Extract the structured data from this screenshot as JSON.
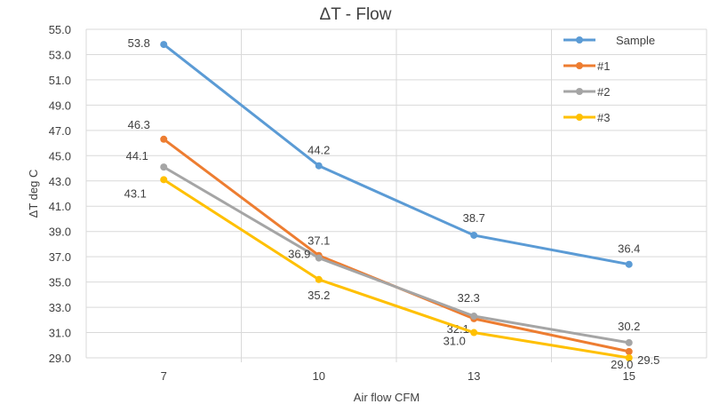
{
  "chart_data": {
    "type": "line",
    "title": "ΔT - Flow",
    "xlabel": "Air flow  CFM",
    "ylabel": "ΔT  deg C",
    "categories": [
      "7",
      "10",
      "13",
      "15"
    ],
    "ylim": [
      29.0,
      55.0
    ],
    "yticks": [
      "29.0",
      "31.0",
      "33.0",
      "35.0",
      "37.0",
      "39.0",
      "41.0",
      "43.0",
      "45.0",
      "47.0",
      "49.0",
      "51.0",
      "53.0",
      "55.0"
    ],
    "grid": true,
    "legend": "top-right",
    "series": [
      {
        "name": "Sample",
        "color": "#5B9BD5",
        "values": [
          53.8,
          44.2,
          38.7,
          36.4
        ],
        "labels": [
          "53.8",
          "44.2",
          "38.7",
          "36.4"
        ]
      },
      {
        "name": "#1",
        "color": "#ED7D31",
        "values": [
          46.3,
          37.1,
          32.1,
          29.5
        ],
        "labels": [
          "46.3",
          "37.1",
          "32.1",
          "29.5"
        ]
      },
      {
        "name": "#2",
        "color": "#A5A5A5",
        "values": [
          44.1,
          36.9,
          32.3,
          30.2
        ],
        "labels": [
          "44.1",
          "36.9",
          "32.3",
          "30.2"
        ]
      },
      {
        "name": "#3",
        "color": "#FFC000",
        "values": [
          43.1,
          35.2,
          31.0,
          29.0
        ],
        "labels": [
          "43.1",
          "35.2",
          "31.0",
          "29.0"
        ]
      }
    ]
  }
}
